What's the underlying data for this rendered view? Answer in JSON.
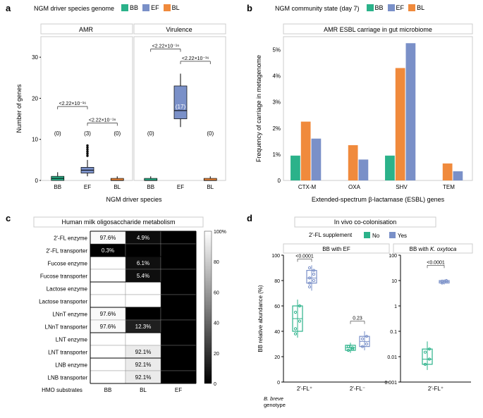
{
  "colors": {
    "BB": "#2bb28a",
    "EF": "#7a90c8",
    "BL": "#f08a3c",
    "supplement_no": "#2bb28a",
    "supplement_yes": "#7a90c8",
    "axis": "#000000",
    "grid": "#e5e5e5",
    "heat_light": "#ffffff",
    "heat_dark": "#000000",
    "facet_border": "#cccccc"
  },
  "panel_a": {
    "label": "a",
    "legend_title": "NGM driver species genome",
    "legend_items": [
      {
        "label": "BB",
        "color_key": "BB"
      },
      {
        "label": "EF",
        "color_key": "EF"
      },
      {
        "label": "BL",
        "color_key": "BL"
      }
    ],
    "facets": [
      "AMR",
      "Virulence"
    ],
    "x_label": "NGM driver species",
    "y_label": "Number of genes",
    "y_lim": [
      0,
      35
    ],
    "y_ticks": [
      0,
      10,
      20,
      30
    ],
    "categories": [
      "BB",
      "EF",
      "BL"
    ],
    "amr": {
      "BB": {
        "median": 0.5,
        "q1": 0,
        "q3": 1,
        "whisk_lo": 0,
        "whisk_hi": 2,
        "count_label": "(0)",
        "outliers": []
      },
      "EF": {
        "median": 2.5,
        "q1": 1.8,
        "q3": 3.2,
        "whisk_lo": 1,
        "whisk_hi": 5,
        "count_label": "(3)",
        "outliers": [
          6,
          6.5,
          7,
          7.5,
          8,
          8.5
        ]
      },
      "BL": {
        "median": 0,
        "q1": 0,
        "q3": 0.5,
        "whisk_lo": 0,
        "whisk_hi": 1,
        "count_label": "(0)",
        "outliers": []
      }
    },
    "virulence": {
      "BB": {
        "median": 0,
        "q1": 0,
        "q3": 0.5,
        "whisk_lo": 0,
        "whisk_hi": 1,
        "count_label": "(0)",
        "outliers": []
      },
      "EF": {
        "median": 17,
        "q1": 15,
        "q3": 23,
        "whisk_lo": 13,
        "whisk_hi": 26,
        "count_label": "(17)",
        "outliers": []
      },
      "BL": {
        "median": 0,
        "q1": 0,
        "q3": 0.5,
        "whisk_lo": 0,
        "whisk_hi": 1,
        "count_label": "(0)",
        "outliers": []
      }
    },
    "p_values": {
      "amr_bb_ef": "<2.22×10⁻¹⁶",
      "amr_ef_bl": "<2.22×10⁻¹⁶",
      "vir_bb_ef": "<2.22×10⁻¹⁶",
      "vir_ef_bl": "<2.22×10⁻¹⁶"
    }
  },
  "panel_b": {
    "label": "b",
    "legend_title": "NGM community state (day 7)",
    "legend_items": [
      {
        "label": "BB",
        "color_key": "BB"
      },
      {
        "label": "EF",
        "color_key": "EF"
      },
      {
        "label": "BL",
        "color_key": "BL"
      }
    ],
    "title": "AMR ESBL carriage in gut microbiome",
    "x_label": "Extended-spectrum β-lactamase (ESBL) genes",
    "y_label": "Frequency of carriage in metagenome",
    "y_lim": [
      0,
      5.5
    ],
    "y_ticks": [
      "0",
      "1%",
      "2%",
      "3%",
      "4%",
      "5%"
    ],
    "categories": [
      "CTX-M",
      "OXA",
      "SHV",
      "TEM"
    ],
    "data": {
      "CTX-M": {
        "BB": 0.95,
        "BL": 2.25,
        "EF": 1.6
      },
      "OXA": {
        "BB": 0,
        "BL": 1.35,
        "EF": 0.8
      },
      "SHV": {
        "BB": 0.95,
        "BL": 4.3,
        "EF": 5.25
      },
      "TEM": {
        "BB": 0,
        "BL": 0.65,
        "EF": 0.35
      }
    }
  },
  "panel_c": {
    "label": "c",
    "title": "Human milk oligosaccharide metabolism",
    "cols": [
      "BB",
      "BL",
      "EF"
    ],
    "x_label": "HMO substrates",
    "scale_max": 100,
    "scale_ticks": [
      "0",
      "20",
      "40",
      "60",
      "80",
      "100%"
    ],
    "rows": [
      {
        "label": "2'-FL enzyme",
        "vals": {
          "BB": 97.6,
          "BL": 4.9,
          "EF": 0
        },
        "show": {
          "BB": "97.6%",
          "BL": "4.9%"
        }
      },
      {
        "label": "2'-FL transporter",
        "vals": {
          "BB": 0.3,
          "BL": 0,
          "EF": 0
        },
        "show": {
          "BB": "0.3%"
        }
      },
      {
        "label": "Fucose enzyme",
        "vals": {
          "BB": 100,
          "BL": 6.1,
          "EF": 0
        },
        "show": {
          "BL": "6.1%"
        }
      },
      {
        "label": "Fucose transporter",
        "vals": {
          "BB": 100,
          "BL": 5.4,
          "EF": 0
        },
        "show": {
          "BL": "5.4%"
        }
      },
      {
        "label": "Lactose enzyme",
        "vals": {
          "BB": 100,
          "BL": 100,
          "EF": 0
        },
        "show": {}
      },
      {
        "label": "Lactose transporter",
        "vals": {
          "BB": 100,
          "BL": 100,
          "EF": 0
        },
        "show": {}
      },
      {
        "label": "LNnT enzyme",
        "vals": {
          "BB": 97.6,
          "BL": 0,
          "EF": 0
        },
        "show": {
          "BB": "97.6%"
        }
      },
      {
        "label": "LNnT transporter",
        "vals": {
          "BB": 97.6,
          "BL": 12.3,
          "EF": 0
        },
        "show": {
          "BB": "97.6%",
          "BL": "12.3%"
        }
      },
      {
        "label": "LNT enzyme",
        "vals": {
          "BB": 100,
          "BL": 100,
          "EF": 0
        },
        "show": {}
      },
      {
        "label": "LNT transporter",
        "vals": {
          "BB": 100,
          "BL": 92.1,
          "EF": 0
        },
        "show": {
          "BL": "92.1%"
        }
      },
      {
        "label": "LNB enzyme",
        "vals": {
          "BB": 100,
          "BL": 92.1,
          "EF": 0
        },
        "show": {
          "BL": "92.1%"
        }
      },
      {
        "label": "LNB transporter",
        "vals": {
          "BB": 100,
          "BL": 92.1,
          "EF": 0
        },
        "show": {
          "BL": "92.1%"
        }
      }
    ]
  },
  "panel_d": {
    "label": "d",
    "title": "In vivo co-colonisation",
    "legend_title": "2'-FL supplement",
    "legend_items": [
      {
        "label": "No",
        "color_key": "supplement_no"
      },
      {
        "label": "Yes",
        "color_key": "supplement_yes"
      }
    ],
    "left": {
      "title": "BB with EF",
      "y_label": "BB relative abundance (%)",
      "y_ticks": [
        0,
        20,
        40,
        60,
        80,
        100
      ],
      "groups": [
        "2'-FL⁺",
        "2'-FL⁻"
      ],
      "x_axis_title": "B. breve genotype",
      "boxes": {
        "2'-FL⁺": {
          "No": {
            "median": 50,
            "q1": 40,
            "q3": 60,
            "lo": 35,
            "hi": 65,
            "pts": [
              42,
              48,
              55,
              60,
              38
            ]
          },
          "Yes": {
            "median": 82,
            "q1": 78,
            "q3": 88,
            "lo": 72,
            "hi": 92,
            "pts": [
              75,
              80,
              82,
              85,
              90,
              88,
              78
            ]
          }
        },
        "2'-FL⁻": {
          "No": {
            "median": 27,
            "q1": 25,
            "q3": 29,
            "lo": 23,
            "hi": 31,
            "pts": [
              25,
              27,
              28,
              26
            ]
          },
          "Yes": {
            "median": 32,
            "q1": 28,
            "q3": 36,
            "lo": 25,
            "hi": 40,
            "pts": [
              28,
              30,
              34,
              36
            ]
          }
        }
      },
      "p_values": {
        "2'-FL⁺": "<0.0001",
        "2'-FL⁻": "0.23"
      }
    },
    "right": {
      "title": "BB with K. oxytoca",
      "y_ticks_log": [
        0.001,
        0.01,
        0.1,
        1,
        10,
        100
      ],
      "group": "2'-FL⁺",
      "boxes": {
        "No": {
          "median": 0.008,
          "q1": 0.005,
          "q3": 0.02,
          "lo": 0.003,
          "hi": 0.04,
          "pts": [
            0.005,
            0.008,
            0.015,
            0.02
          ]
        },
        "Yes": {
          "median": 9,
          "q1": 8,
          "q3": 10,
          "lo": 7,
          "hi": 11,
          "pts": [
            8,
            9,
            9.5,
            10
          ]
        }
      },
      "p_value": "<0.0001"
    }
  }
}
